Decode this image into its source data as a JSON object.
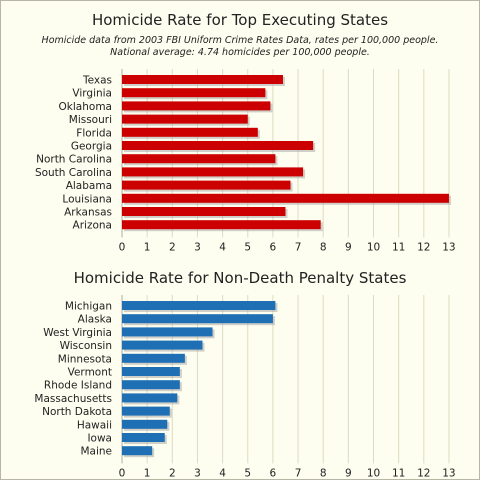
{
  "chart_data": [
    {
      "type": "bar",
      "orientation": "horizontal",
      "title": "Homicide Rate for Top Executing States",
      "subtitle_lines": [
        "Homicide data from 2003 FBI Uniform Crime Rates Data, rates per 100,000 people.",
        "National average: 4.74 homicides per 100,000 people."
      ],
      "categories": [
        "Texas",
        "Virginia",
        "Oklahoma",
        "Missouri",
        "Florida",
        "Georgia",
        "North Carolina",
        "South Carolina",
        "Alabama",
        "Louisiana",
        "Arkansas",
        "Arizona"
      ],
      "values": [
        6.4,
        5.7,
        5.9,
        5.0,
        5.4,
        7.6,
        6.1,
        7.2,
        6.7,
        13.0,
        6.5,
        7.9
      ],
      "xlim": [
        0,
        13
      ],
      "xticks": [
        "0",
        "1",
        "2",
        "3",
        "4",
        "5",
        "6",
        "7",
        "8",
        "9",
        "10",
        "11",
        "12",
        "13"
      ],
      "grid": true,
      "bar_color": "#cc0000"
    },
    {
      "type": "bar",
      "orientation": "horizontal",
      "title": "Homicide Rate for Non-Death Penalty States",
      "categories": [
        "Michigan",
        "Alaska",
        "West Virginia",
        "Wisconsin",
        "Minnesota",
        "Vermont",
        "Rhode Island",
        "Massachusetts",
        "North Dakota",
        "Hawaii",
        "Iowa",
        "Maine"
      ],
      "values": [
        6.1,
        6.0,
        3.6,
        3.2,
        2.5,
        2.3,
        2.3,
        2.2,
        1.9,
        1.8,
        1.7,
        1.2
      ],
      "xlim": [
        0,
        13
      ],
      "xticks": [
        "0",
        "1",
        "2",
        "3",
        "4",
        "5",
        "6",
        "7",
        "8",
        "9",
        "10",
        "11",
        "12",
        "13"
      ],
      "grid": true,
      "bar_color": "#1f6fb5"
    }
  ]
}
